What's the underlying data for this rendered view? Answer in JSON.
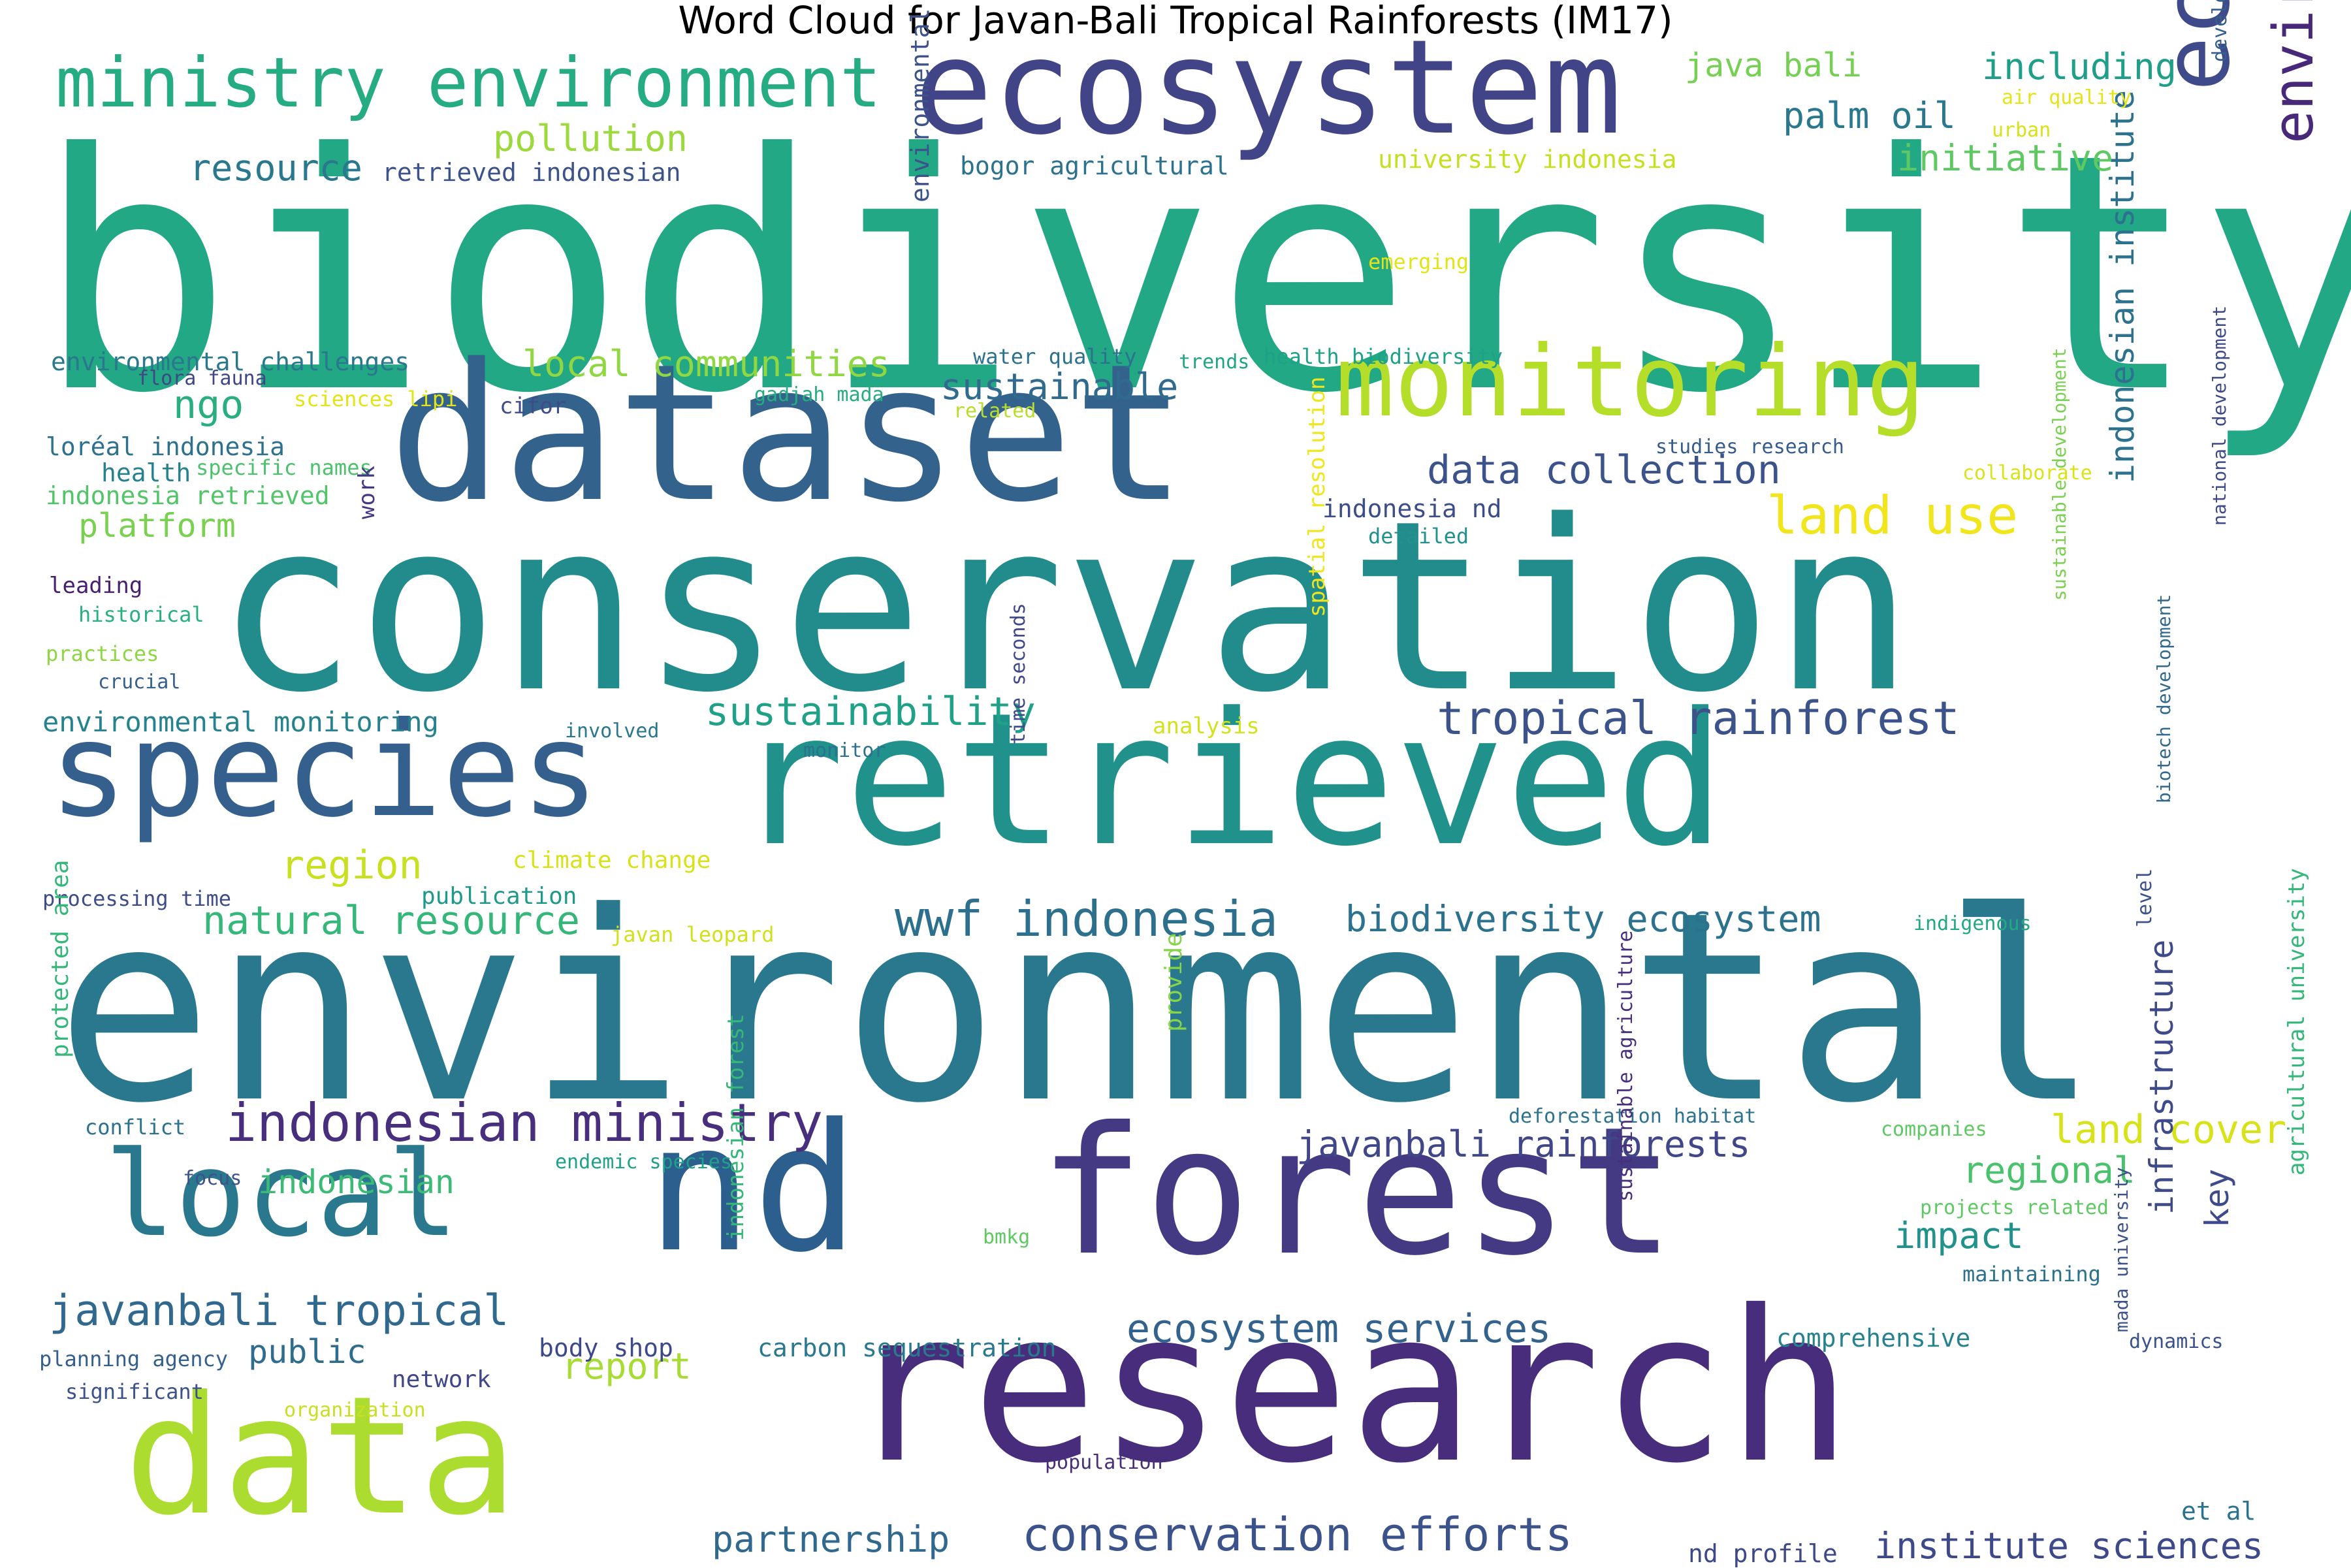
{
  "title": "Word Cloud for Javan-Bali Tropical Rainforests (IM17)",
  "words": [
    {
      "text": "biodiversity",
      "color": "#22a884"
    },
    {
      "text": "environmental",
      "color": "#2a788e"
    },
    {
      "text": "conservation",
      "color": "#228c8d"
    },
    {
      "text": "research",
      "color": "#472d7b"
    },
    {
      "text": "dataset",
      "color": "#33638d"
    },
    {
      "text": "retrieved",
      "color": "#21918c"
    },
    {
      "text": "forest",
      "color": "#443983"
    },
    {
      "text": "nd",
      "color": "#2c5f8e"
    },
    {
      "text": "data",
      "color": "#addc30"
    },
    {
      "text": "ecosystem",
      "color": "#414487"
    },
    {
      "text": "species",
      "color": "#355f8d"
    },
    {
      "text": "local",
      "color": "#2a788e"
    },
    {
      "text": "monitoring",
      "color": "#b5de2b"
    },
    {
      "text": "ministry environment",
      "color": "#25ac82"
    },
    {
      "text": "ecological",
      "color": "#3e4a89"
    },
    {
      "text": "environment forestry",
      "color": "#482878"
    },
    {
      "text": "indonesian ministry",
      "color": "#472f7d"
    },
    {
      "text": "javanbali tropical",
      "color": "#31688e"
    },
    {
      "text": "conservation efforts",
      "color": "#3b528b"
    },
    {
      "text": "tropical rainforest",
      "color": "#3b528b"
    },
    {
      "text": "land use",
      "color": "#f1e51d"
    },
    {
      "text": "wwf indonesia",
      "color": "#2d708e"
    },
    {
      "text": "data collection",
      "color": "#3b528b"
    },
    {
      "text": "ecosystem services",
      "color": "#33638d"
    },
    {
      "text": "javanbali rainforests",
      "color": "#404688"
    },
    {
      "text": "indonesian institute",
      "color": "#2c728e"
    },
    {
      "text": "institute sciences",
      "color": "#3e4989"
    },
    {
      "text": "partnership",
      "color": "#31688e"
    },
    {
      "text": "natural resource",
      "color": "#35b779"
    },
    {
      "text": "sustainability",
      "color": "#1fa187"
    },
    {
      "text": "biodiversity ecosystem",
      "color": "#2c728e"
    },
    {
      "text": "local communities",
      "color": "#90d743"
    },
    {
      "text": "sustainable",
      "color": "#306a8e"
    },
    {
      "text": "land cover",
      "color": "#d8e219"
    },
    {
      "text": "palm oil",
      "color": "#2a788e"
    },
    {
      "text": "including",
      "color": "#1f9e89"
    },
    {
      "text": "initiative",
      "color": "#5ec962"
    },
    {
      "text": "pollution",
      "color": "#9bd93c"
    },
    {
      "text": "region",
      "color": "#c8e020"
    },
    {
      "text": "ngo",
      "color": "#29af7f"
    },
    {
      "text": "resource",
      "color": "#2a788e"
    },
    {
      "text": "platform",
      "color": "#7ad151"
    },
    {
      "text": "java bali",
      "color": "#75d054"
    },
    {
      "text": "report",
      "color": "#a8db34"
    },
    {
      "text": "impact",
      "color": "#21918c"
    },
    {
      "text": "regional",
      "color": "#4ac16d"
    },
    {
      "text": "indonesian",
      "color": "#3bbb75"
    },
    {
      "text": "public",
      "color": "#2f6c8e"
    },
    {
      "text": "key",
      "color": "#3e4a89"
    },
    {
      "text": "infrastructure",
      "color": "#3e4a89"
    },
    {
      "text": "environmental monitoring",
      "color": "#26828e"
    },
    {
      "text": "environmental challenges",
      "color": "#2a788e"
    },
    {
      "text": "retrieved indonesian",
      "color": "#3b528b"
    },
    {
      "text": "bogor agricultural",
      "color": "#2c728e"
    },
    {
      "text": "university indonesia",
      "color": "#c5e021"
    },
    {
      "text": "air quality",
      "color": "#e5e419"
    },
    {
      "text": "urban",
      "color": "#d8e219"
    },
    {
      "text": "development planning",
      "color": "#35608d"
    },
    {
      "text": "emerging",
      "color": "#e2e418"
    },
    {
      "text": "water quality",
      "color": "#2c728e"
    },
    {
      "text": "trends",
      "color": "#20a486"
    },
    {
      "text": "health biodiversity",
      "color": "#1fa088"
    },
    {
      "text": "flora fauna",
      "color": "#3f4788"
    },
    {
      "text": "sciences lipi",
      "color": "#e2e418"
    },
    {
      "text": "cifor",
      "color": "#3e4c8a"
    },
    {
      "text": "gadjah mada",
      "color": "#27ad81"
    },
    {
      "text": "related",
      "color": "#b8de29"
    },
    {
      "text": "environmental justice",
      "color": "#3b528b"
    },
    {
      "text": "loréal indonesia",
      "color": "#2d718e"
    },
    {
      "text": "health",
      "color": "#26818e"
    },
    {
      "text": "specific names",
      "color": "#4cc26c"
    },
    {
      "text": "indonesia retrieved",
      "color": "#52c569"
    },
    {
      "text": "work",
      "color": "#453781"
    },
    {
      "text": "studies research",
      "color": "#365c8d"
    },
    {
      "text": "collaborate",
      "color": "#dae319"
    },
    {
      "text": "indonesia nd",
      "color": "#3d4d8a"
    },
    {
      "text": "detailed",
      "color": "#21918c"
    },
    {
      "text": "leading",
      "color": "#481f70"
    },
    {
      "text": "historical",
      "color": "#2ab07f"
    },
    {
      "text": "practices",
      "color": "#8ed645"
    },
    {
      "text": "crucial",
      "color": "#355f8d"
    },
    {
      "text": "spatial resolution",
      "color": "#f1e51d"
    },
    {
      "text": "national development",
      "color": "#3e4989"
    },
    {
      "text": "sustainable development",
      "color": "#7ad151"
    },
    {
      "text": "involved",
      "color": "#2a788e"
    },
    {
      "text": "analysis",
      "color": "#d2e21b"
    },
    {
      "text": "monitor",
      "color": "#2c728e"
    },
    {
      "text": "time seconds",
      "color": "#3f4889"
    },
    {
      "text": "biotech development",
      "color": "#31688e"
    },
    {
      "text": "level",
      "color": "#3b528b"
    },
    {
      "text": "processing time",
      "color": "#3e4c8a"
    },
    {
      "text": "publication",
      "color": "#1f9a8a"
    },
    {
      "text": "climate change",
      "color": "#d8e219"
    },
    {
      "text": "javan leopard",
      "color": "#d0e11c"
    },
    {
      "text": "indigenous",
      "color": "#22a884"
    },
    {
      "text": "protected area",
      "color": "#35b779"
    },
    {
      "text": "conflict",
      "color": "#2c728e"
    },
    {
      "text": "focus",
      "color": "#3b528b"
    },
    {
      "text": "endemic species",
      "color": "#1fa088"
    },
    {
      "text": "provide",
      "color": "#86d549"
    },
    {
      "text": "deforestation habitat",
      "color": "#2c728e"
    },
    {
      "text": "companies",
      "color": "#5ec962"
    },
    {
      "text": "projects related",
      "color": "#5ec962"
    },
    {
      "text": "agricultural university",
      "color": "#35b779"
    },
    {
      "text": "maintaining",
      "color": "#2c728e"
    },
    {
      "text": "bmkg",
      "color": "#5ec962"
    },
    {
      "text": "sustainable agriculture",
      "color": "#472f7d"
    },
    {
      "text": "comprehensive",
      "color": "#26828e"
    },
    {
      "text": "dynamics",
      "color": "#3b528b"
    },
    {
      "text": "mada university",
      "color": "#3b528b"
    },
    {
      "text": "body shop",
      "color": "#3e4989"
    },
    {
      "text": "carbon sequestration",
      "color": "#2a788e"
    },
    {
      "text": "planning agency",
      "color": "#355f8d"
    },
    {
      "text": "network",
      "color": "#404688"
    },
    {
      "text": "significant",
      "color": "#3b528b"
    },
    {
      "text": "organization",
      "color": "#c8e020"
    },
    {
      "text": "population",
      "color": "#472d7b"
    },
    {
      "text": "indonesian forest",
      "color": "#35b779"
    },
    {
      "text": "nd profile",
      "color": "#3e4989"
    },
    {
      "text": "et al",
      "color": "#2c728e"
    }
  ]
}
